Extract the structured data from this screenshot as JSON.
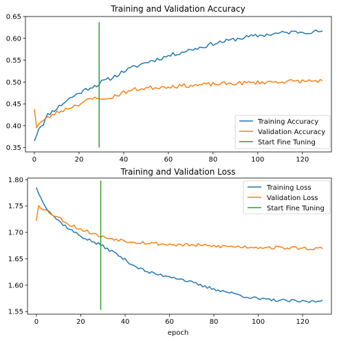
{
  "chart_data": [
    {
      "type": "line",
      "title": "Training and Validation Accuracy",
      "xlabel": "",
      "ylabel": "",
      "xlim": [
        -4,
        133
      ],
      "ylim": [
        0.34,
        0.65
      ],
      "xticks": [
        0,
        20,
        40,
        60,
        80,
        100,
        120
      ],
      "yticks": [
        0.35,
        0.4,
        0.45,
        0.5,
        0.55,
        0.6,
        0.65
      ],
      "ytick_labels": [
        "0.35",
        "0.40",
        "0.45",
        "0.50",
        "0.55",
        "0.60",
        "0.65"
      ],
      "legend_position": "lower-right",
      "grid": false,
      "series": [
        {
          "name": "Training Accuracy",
          "color": "#1f77b4",
          "anchors": [
            [
              0,
              0.365
            ],
            [
              2,
              0.395
            ],
            [
              4,
              0.405
            ],
            [
              6,
              0.425
            ],
            [
              10,
              0.44
            ],
            [
              15,
              0.46
            ],
            [
              20,
              0.475
            ],
            [
              25,
              0.488
            ],
            [
              29,
              0.495
            ],
            [
              30,
              0.5
            ],
            [
              35,
              0.51
            ],
            [
              40,
              0.525
            ],
            [
              45,
              0.535
            ],
            [
              50,
              0.545
            ],
            [
              55,
              0.552
            ],
            [
              60,
              0.56
            ],
            [
              65,
              0.567
            ],
            [
              70,
              0.574
            ],
            [
              75,
              0.58
            ],
            [
              80,
              0.588
            ],
            [
              85,
              0.593
            ],
            [
              90,
              0.598
            ],
            [
              95,
              0.603
            ],
            [
              100,
              0.606
            ],
            [
              105,
              0.609
            ],
            [
              110,
              0.612
            ],
            [
              115,
              0.614
            ],
            [
              120,
              0.615
            ],
            [
              125,
              0.615
            ],
            [
              129,
              0.617
            ]
          ],
          "noise": 0.0045,
          "seed": 11
        },
        {
          "name": "Validation Accuracy",
          "color": "#ff7f0e",
          "anchors": [
            [
              0,
              0.438
            ],
            [
              1,
              0.398
            ],
            [
              2,
              0.405
            ],
            [
              5,
              0.415
            ],
            [
              10,
              0.43
            ],
            [
              15,
              0.44
            ],
            [
              20,
              0.45
            ],
            [
              25,
              0.46
            ],
            [
              29,
              0.466
            ],
            [
              31,
              0.458
            ],
            [
              35,
              0.466
            ],
            [
              40,
              0.476
            ],
            [
              45,
              0.483
            ],
            [
              50,
              0.486
            ],
            [
              60,
              0.49
            ],
            [
              70,
              0.492
            ],
            [
              80,
              0.495
            ],
            [
              90,
              0.497
            ],
            [
              100,
              0.499
            ],
            [
              110,
              0.501
            ],
            [
              120,
              0.502
            ],
            [
              129,
              0.503
            ]
          ],
          "noise": 0.0045,
          "seed": 23
        },
        {
          "name": "Start Fine Tuning",
          "color": "#2ca02c",
          "points": [
            [
              29,
              0.35
            ],
            [
              29,
              0.637
            ]
          ]
        }
      ]
    },
    {
      "type": "line",
      "title": "Training and Validation Loss",
      "xlabel": "epoch",
      "ylabel": "",
      "xlim": [
        -4,
        133
      ],
      "ylim": [
        1.545,
        1.803
      ],
      "xticks": [
        0,
        20,
        40,
        60,
        80,
        100,
        120
      ],
      "yticks": [
        1.55,
        1.6,
        1.65,
        1.7,
        1.75,
        1.8
      ],
      "ytick_labels": [
        "1.55",
        "1.60",
        "1.65",
        "1.70",
        "1.75",
        "1.80"
      ],
      "legend_position": "upper-right",
      "grid": false,
      "series": [
        {
          "name": "Training Loss",
          "color": "#1f77b4",
          "anchors": [
            [
              0,
              1.785
            ],
            [
              2,
              1.765
            ],
            [
              5,
              1.745
            ],
            [
              8,
              1.73
            ],
            [
              10,
              1.722
            ],
            [
              15,
              1.706
            ],
            [
              20,
              1.693
            ],
            [
              25,
              1.683
            ],
            [
              29,
              1.676
            ],
            [
              35,
              1.662
            ],
            [
              40,
              1.648
            ],
            [
              45,
              1.635
            ],
            [
              50,
              1.625
            ],
            [
              55,
              1.62
            ],
            [
              60,
              1.617
            ],
            [
              65,
              1.612
            ],
            [
              70,
              1.605
            ],
            [
              75,
              1.598
            ],
            [
              80,
              1.593
            ],
            [
              85,
              1.588
            ],
            [
              90,
              1.583
            ],
            [
              95,
              1.578
            ],
            [
              100,
              1.574
            ],
            [
              105,
              1.572
            ],
            [
              110,
              1.571
            ],
            [
              115,
              1.57
            ],
            [
              120,
              1.569
            ],
            [
              125,
              1.569
            ],
            [
              129,
              1.571
            ]
          ],
          "noise": 0.0028,
          "seed": 37
        },
        {
          "name": "Validation Loss",
          "color": "#ff7f0e",
          "anchors": [
            [
              0,
              1.722
            ],
            [
              1,
              1.752
            ],
            [
              3,
              1.745
            ],
            [
              5,
              1.74
            ],
            [
              10,
              1.728
            ],
            [
              15,
              1.715
            ],
            [
              20,
              1.706
            ],
            [
              25,
              1.699
            ],
            [
              29,
              1.692
            ],
            [
              35,
              1.688
            ],
            [
              40,
              1.684
            ],
            [
              50,
              1.68
            ],
            [
              60,
              1.677
            ],
            [
              70,
              1.676
            ],
            [
              80,
              1.674
            ],
            [
              90,
              1.673
            ],
            [
              100,
              1.672
            ],
            [
              110,
              1.671
            ],
            [
              120,
              1.67
            ],
            [
              129,
              1.669
            ]
          ],
          "noise": 0.0032,
          "seed": 53
        },
        {
          "name": "Start Fine Tuning",
          "color": "#2ca02c",
          "points": [
            [
              29,
              1.553
            ],
            [
              29,
              1.798
            ]
          ]
        }
      ]
    }
  ]
}
